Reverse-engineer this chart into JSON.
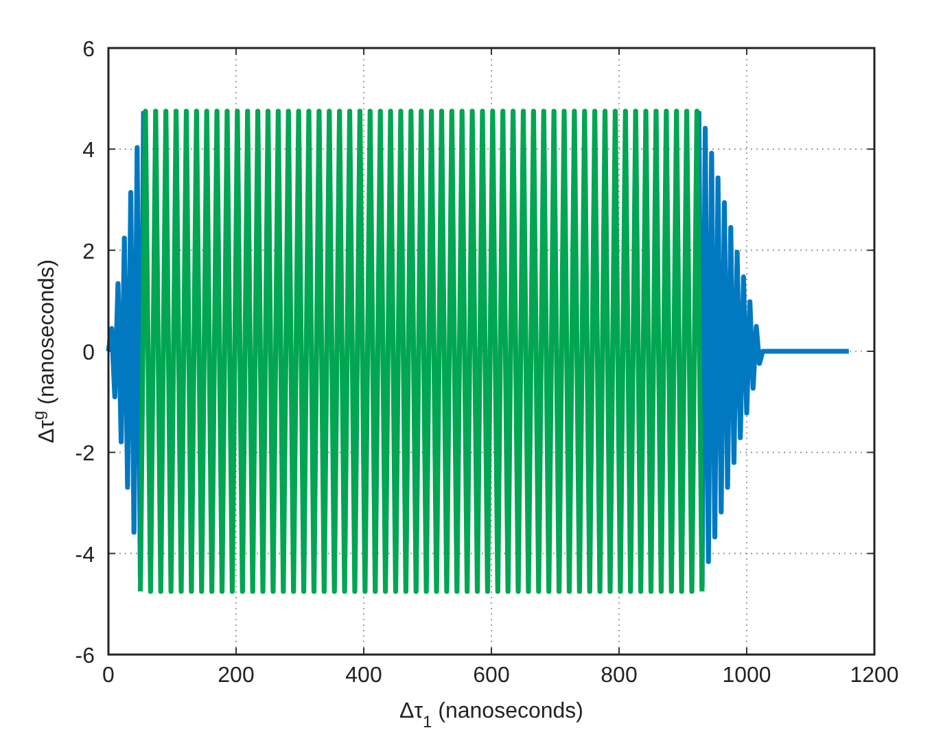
{
  "chart_data": {
    "type": "line",
    "xlabel": "Δτ$_{1}$ (nanoseconds)",
    "ylabel": "Δτ$^{g}$ (nanoseconds)",
    "xlim": [
      0,
      1200
    ],
    "ylim": [
      -6,
      6
    ],
    "xticks": [
      0,
      200,
      400,
      600,
      800,
      1000,
      1200
    ],
    "yticks": [
      -6,
      -4,
      -2,
      0,
      2,
      4,
      6
    ],
    "grid": true,
    "marker": "none",
    "line_style": "solid",
    "series": [
      {
        "color": "#0079c1",
        "x": [
          0,
          5,
          10,
          15,
          20,
          25,
          30,
          35,
          40,
          45,
          50,
          55
        ],
        "values": [
          0,
          0.45,
          -0.9,
          1.34,
          -1.79,
          2.24,
          -2.69,
          3.14,
          -3.58,
          4.03,
          -4.48,
          4.75
        ]
      },
      {
        "color": "#0079c1",
        "x": [
          925,
          930,
          935,
          940,
          945,
          950,
          955,
          960,
          965,
          970,
          975,
          980,
          985,
          990,
          995,
          1000,
          1005,
          1010,
          1015,
          1020,
          1025,
          1160
        ],
        "values": [
          4.75,
          -4.65,
          4.41,
          -4.16,
          3.92,
          -3.67,
          3.43,
          -3.18,
          2.94,
          -2.69,
          2.45,
          -2.2,
          1.96,
          -1.71,
          1.47,
          -1.22,
          0.98,
          -0.73,
          0.49,
          -0.24,
          0,
          0
        ]
      },
      {
        "color": "#00a651",
        "x": [
          50,
          58,
          66,
          74,
          82,
          90,
          98,
          106,
          114,
          122,
          130,
          138,
          146,
          154,
          162,
          170,
          178,
          186,
          194,
          202,
          210,
          218,
          226,
          234,
          242,
          250,
          258,
          266,
          274,
          282,
          290,
          298,
          306,
          314,
          322,
          330,
          338,
          346,
          354,
          362,
          370,
          378,
          386,
          394,
          402,
          410,
          418,
          426,
          434,
          442,
          450,
          458,
          466,
          474,
          482,
          490,
          498,
          506,
          514,
          522,
          530,
          538,
          546,
          554,
          562,
          570,
          578,
          586,
          594,
          602,
          610,
          618,
          626,
          634,
          642,
          650,
          658,
          666,
          674,
          682,
          690,
          698,
          706,
          714,
          722,
          730,
          738,
          746,
          754,
          762,
          770,
          778,
          786,
          794,
          802,
          810,
          818,
          826,
          834,
          842,
          850,
          858,
          866,
          874,
          882,
          890,
          898,
          906,
          914,
          922,
          930
        ],
        "values": [
          -4.75,
          4.75,
          -4.75,
          4.75,
          -4.75,
          4.75,
          -4.75,
          4.75,
          -4.75,
          4.75,
          -4.75,
          4.75,
          -4.75,
          4.75,
          -4.75,
          4.75,
          -4.75,
          4.75,
          -4.75,
          4.75,
          -4.75,
          4.75,
          -4.75,
          4.75,
          -4.75,
          4.75,
          -4.75,
          4.75,
          -4.75,
          4.75,
          -4.75,
          4.75,
          -4.75,
          4.75,
          -4.75,
          4.75,
          -4.75,
          4.75,
          -4.75,
          4.75,
          -4.75,
          4.75,
          -4.75,
          4.75,
          -4.75,
          4.75,
          -4.75,
          4.75,
          -4.75,
          4.75,
          -4.75,
          4.75,
          -4.75,
          4.75,
          -4.75,
          4.75,
          -4.75,
          4.75,
          -4.75,
          4.75,
          -4.75,
          4.75,
          -4.75,
          4.75,
          -4.75,
          4.75,
          -4.75,
          4.75,
          -4.75,
          4.75,
          -4.75,
          4.75,
          -4.75,
          4.75,
          -4.75,
          4.75,
          -4.75,
          4.75,
          -4.75,
          4.75,
          -4.75,
          4.75,
          -4.75,
          4.75,
          -4.75,
          4.75,
          -4.75,
          4.75,
          -4.75,
          4.75,
          -4.75,
          4.75,
          -4.75,
          4.75,
          -4.75,
          4.75,
          -4.75,
          4.75,
          -4.75,
          4.75,
          -4.75,
          4.75,
          -4.75,
          4.75,
          -4.75,
          4.75,
          -4.75,
          4.75,
          -4.75,
          4.75,
          -4.75
        ]
      }
    ]
  }
}
